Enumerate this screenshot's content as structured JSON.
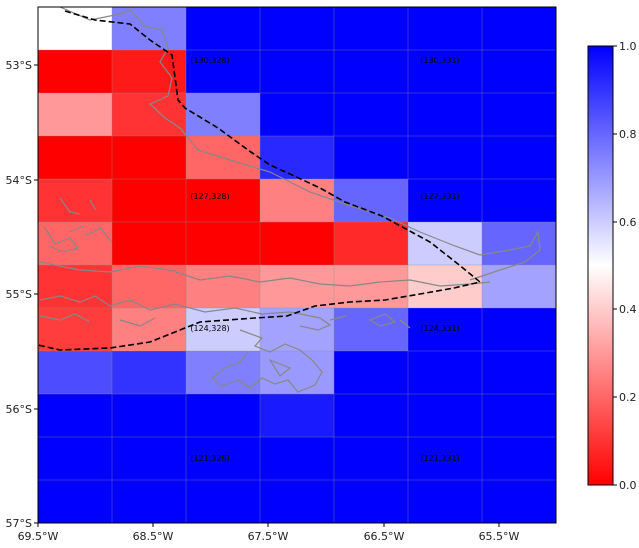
{
  "map": {
    "lon_ticks": [
      "69.5°W",
      "68.5°W",
      "67.5°W",
      "66.5°W",
      "65.5°W"
    ],
    "lat_ticks": [
      "53°S",
      "54°S",
      "55°S",
      "56°S",
      "57°S"
    ],
    "grid": {
      "cols": 7,
      "rows": 12,
      "values": [
        [
          0.5,
          0.75,
          1,
          1,
          1,
          1,
          1
        ],
        [
          0.0,
          0.05,
          1,
          1,
          1,
          1,
          1
        ],
        [
          0.3,
          0.1,
          0.75,
          1,
          1,
          1,
          1
        ],
        [
          0.0,
          0.0,
          0.2,
          0.92,
          1,
          1,
          1
        ],
        [
          0.1,
          0.0,
          0.0,
          0.25,
          0.8,
          1,
          1
        ],
        [
          0.2,
          0.0,
          0.0,
          0.0,
          0.08,
          0.6,
          0.8
        ],
        [
          0.1,
          0.2,
          0.25,
          0.3,
          0.3,
          0.4,
          0.68
        ],
        [
          0.12,
          0.25,
          0.6,
          0.68,
          0.8,
          1,
          1
        ],
        [
          0.85,
          0.9,
          0.75,
          0.7,
          1,
          1,
          1
        ],
        [
          1,
          1,
          1,
          0.95,
          1,
          1,
          1
        ],
        [
          1,
          1,
          1,
          1,
          1,
          1,
          1
        ],
        [
          1,
          1,
          1,
          1,
          1,
          1,
          1
        ]
      ],
      "labels": [
        {
          "text": "(130,328)",
          "col": 2,
          "row": 1
        },
        {
          "text": "(130,331)",
          "col": 5,
          "row": 1
        },
        {
          "text": "(127,328)",
          "col": 2,
          "row": 4
        },
        {
          "text": "(127,331)",
          "col": 5,
          "row": 4
        },
        {
          "text": "(124,328)",
          "col": 2,
          "row": 7
        },
        {
          "text": "(124,331)",
          "col": 5,
          "row": 7
        },
        {
          "text": "(121,328)",
          "col": 2,
          "row": 10
        },
        {
          "text": "(121,331)",
          "col": 5,
          "row": 10
        }
      ]
    },
    "colorbar": {
      "min": 0.0,
      "max": 1.0,
      "ticks": [
        "0.0",
        "0.2",
        "0.4",
        "0.6",
        "0.8",
        "1.0"
      ],
      "colors": [
        "#ff0000",
        "#ffffff",
        "#0000ff"
      ]
    },
    "line_colors": {
      "coastline": "#888888",
      "boundary": "#000000"
    }
  }
}
